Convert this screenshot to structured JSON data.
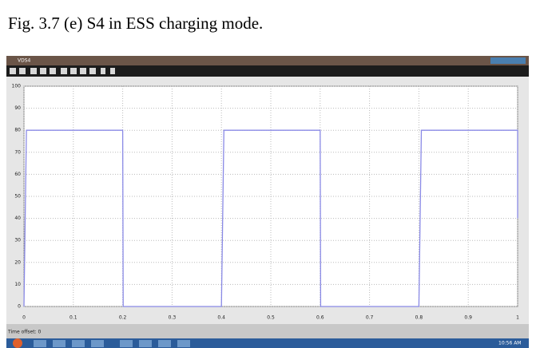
{
  "caption": "Fig. 3.7 (e) S4 in ESS charging mode.",
  "window": {
    "title": "VDS4"
  },
  "chart_data": {
    "type": "line",
    "x": [
      0,
      0.005,
      0.2,
      0.201,
      0.4,
      0.405,
      0.6,
      0.601,
      0.8,
      0.805,
      1.0,
      1.0
    ],
    "y": [
      0,
      80,
      80,
      0,
      0,
      80,
      80,
      0,
      0,
      80,
      80,
      40
    ],
    "color": "#8a8ae6",
    "xlim": [
      0,
      1
    ],
    "ylim": [
      0,
      100
    ],
    "xticks": [
      0,
      0.1,
      0.2,
      0.3,
      0.4,
      0.5,
      0.6,
      0.7,
      0.8,
      0.9,
      1
    ],
    "yticks": [
      0,
      10,
      20,
      30,
      40,
      50,
      60,
      70,
      80,
      90,
      100
    ],
    "grid": true
  },
  "status": {
    "time_offset": "Time offset: 0"
  },
  "taskbar": {
    "clock": "10:56 AM"
  }
}
